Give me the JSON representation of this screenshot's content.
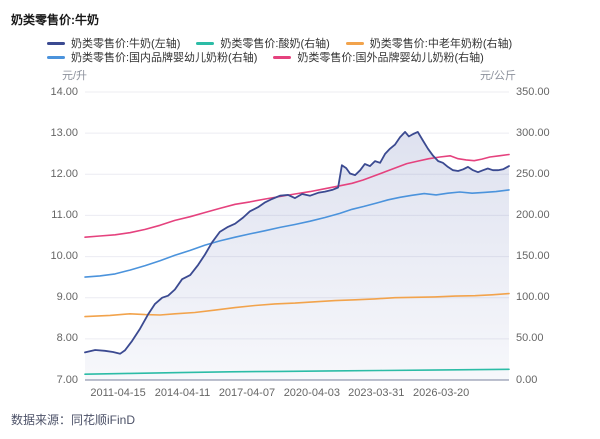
{
  "title": "奶类零售价:牛奶",
  "footer": {
    "source": "数据来源：同花顺iFinD"
  },
  "chart_data": {
    "type": "line",
    "title": "奶类零售价:牛奶",
    "grid": true,
    "legend_position": "top",
    "left_axis": {
      "unit": "元/升",
      "min": 7,
      "max": 14,
      "ticks": [
        "14.00",
        "13.00",
        "12.00",
        "11.00",
        "10.00",
        "9.00",
        "8.00",
        "7.00"
      ]
    },
    "right_axis": {
      "unit": "元/公斤",
      "min": 0,
      "max": 350,
      "ticks": [
        "350.00",
        "300.00",
        "250.00",
        "200.00",
        "150.00",
        "100.00",
        "50.00",
        "0.00"
      ]
    },
    "x_axis": {
      "tick_labels": [
        "2011-04-15",
        "2014-04-11",
        "2017-04-07",
        "2020-04-03",
        "2023-03-31",
        "2026-03-20"
      ],
      "tick_positions": [
        0.078,
        0.23,
        0.382,
        0.535,
        0.687,
        0.84
      ]
    },
    "colors": {
      "milk": "#3b4a91",
      "yogurt": "#2cbca6",
      "middle_aged_powder": "#f2a34c",
      "domestic_infant_powder": "#4b93dc",
      "foreign_infant_powder": "#e5427e",
      "grid": "#ececf2",
      "axis": "#a6acbd"
    },
    "legend_rows": [
      [
        0,
        1,
        2
      ],
      [
        3,
        4
      ]
    ],
    "series": [
      {
        "name": "奶类零售价:牛奶(左轴)",
        "axis": "left",
        "color": "#3b4a91",
        "area_fill": true,
        "x": [
          0,
          0.024,
          0.047,
          0.066,
          0.083,
          0.094,
          0.111,
          0.13,
          0.149,
          0.165,
          0.182,
          0.196,
          0.212,
          0.229,
          0.248,
          0.267,
          0.283,
          0.3,
          0.318,
          0.337,
          0.354,
          0.373,
          0.389,
          0.408,
          0.425,
          0.441,
          0.46,
          0.479,
          0.495,
          0.512,
          0.531,
          0.55,
          0.566,
          0.583,
          0.597,
          0.606,
          0.616,
          0.625,
          0.637,
          0.649,
          0.66,
          0.672,
          0.684,
          0.696,
          0.708,
          0.719,
          0.731,
          0.743,
          0.755,
          0.764,
          0.774,
          0.785,
          0.797,
          0.809,
          0.821,
          0.833,
          0.844,
          0.856,
          0.868,
          0.88,
          0.892,
          0.903,
          0.915,
          0.927,
          0.939,
          0.95,
          0.962,
          0.974,
          0.986,
          1
        ],
        "values": [
          7.67,
          7.73,
          7.71,
          7.68,
          7.64,
          7.72,
          7.95,
          8.25,
          8.6,
          8.85,
          9.0,
          9.05,
          9.2,
          9.45,
          9.55,
          9.8,
          10.05,
          10.35,
          10.6,
          10.72,
          10.8,
          10.95,
          11.1,
          11.2,
          11.32,
          11.4,
          11.48,
          11.5,
          11.42,
          11.52,
          11.48,
          11.55,
          11.58,
          11.62,
          11.68,
          12.22,
          12.15,
          12.02,
          11.98,
          12.1,
          12.25,
          12.2,
          12.32,
          12.28,
          12.5,
          12.62,
          12.72,
          12.9,
          13.03,
          12.92,
          12.98,
          13.03,
          12.82,
          12.62,
          12.45,
          12.32,
          12.28,
          12.18,
          12.1,
          12.08,
          12.12,
          12.18,
          12.1,
          12.05,
          12.1,
          12.14,
          12.1,
          12.1,
          12.12,
          12.2
        ]
      },
      {
        "name": "奶类零售价:酸奶(右轴)",
        "axis": "right",
        "color": "#2cbca6",
        "area_fill": false,
        "x": [
          0,
          0.106,
          0.224,
          0.342,
          0.46,
          0.578,
          0.696,
          0.814,
          0.908,
          1
        ],
        "values": [
          7,
          8,
          9,
          10,
          10.5,
          11,
          11.5,
          12,
          12.5,
          13
        ]
      },
      {
        "name": "奶类零售价:中老年奶粉(右轴)",
        "axis": "right",
        "color": "#f2a34c",
        "area_fill": false,
        "x": [
          0,
          0.059,
          0.106,
          0.142,
          0.177,
          0.212,
          0.259,
          0.307,
          0.354,
          0.401,
          0.448,
          0.495,
          0.542,
          0.59,
          0.637,
          0.684,
          0.731,
          0.778,
          0.825,
          0.873,
          0.92,
          0.96,
          1
        ],
        "values": [
          77,
          78.5,
          80.5,
          79.5,
          79,
          80.5,
          82,
          85,
          88,
          90.5,
          92.5,
          93.5,
          95,
          96.5,
          97.5,
          98.5,
          100,
          100.5,
          101,
          102,
          102.5,
          103.5,
          105
        ]
      },
      {
        "name": "奶类零售价:国内品牌婴幼儿奶粉(右轴)",
        "axis": "right",
        "color": "#4b93dc",
        "area_fill": false,
        "x": [
          0,
          0.035,
          0.071,
          0.106,
          0.142,
          0.177,
          0.212,
          0.248,
          0.283,
          0.318,
          0.354,
          0.389,
          0.425,
          0.46,
          0.495,
          0.531,
          0.566,
          0.601,
          0.63,
          0.658,
          0.687,
          0.715,
          0.743,
          0.771,
          0.8,
          0.828,
          0.856,
          0.884,
          0.913,
          0.941,
          0.969,
          1
        ],
        "values": [
          125,
          126.5,
          129,
          133.5,
          139,
          145,
          151.5,
          157.5,
          164,
          169,
          173.5,
          177.5,
          181.5,
          185.5,
          189,
          193,
          197.5,
          202.5,
          207.5,
          211,
          215,
          219,
          222,
          224.5,
          226.5,
          225,
          227,
          228.5,
          227,
          228,
          229,
          231
        ]
      },
      {
        "name": "奶类零售价:国外品牌婴幼儿奶粉(右轴)",
        "axis": "right",
        "color": "#e5427e",
        "area_fill": false,
        "x": [
          0,
          0.035,
          0.071,
          0.106,
          0.142,
          0.177,
          0.212,
          0.248,
          0.283,
          0.318,
          0.354,
          0.389,
          0.425,
          0.46,
          0.495,
          0.531,
          0.566,
          0.601,
          0.63,
          0.656,
          0.682,
          0.708,
          0.733,
          0.759,
          0.785,
          0.811,
          0.837,
          0.861,
          0.88,
          0.899,
          0.918,
          0.936,
          0.955,
          0.977,
          1
        ],
        "values": [
          173.5,
          175,
          176.5,
          179,
          183,
          188,
          194,
          198.5,
          203.5,
          208.5,
          213.5,
          216.5,
          220,
          223,
          226,
          229,
          232.5,
          236,
          239,
          243,
          248,
          253,
          258,
          263,
          266,
          269,
          271,
          272.5,
          269,
          267.5,
          266.5,
          268.5,
          271,
          272.5,
          274
        ]
      }
    ]
  }
}
